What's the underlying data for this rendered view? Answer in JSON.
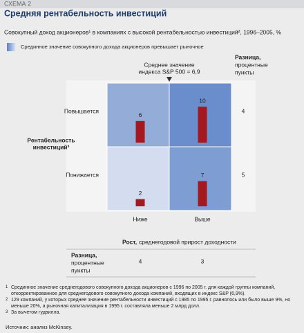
{
  "header": {
    "label": "СХЕМА 2",
    "title": "Средняя рентабельность инвестиций"
  },
  "chart_data": {
    "type": "matrix-bar",
    "subtitle": "Совокупный доход акционеров¹ в компаниях с высокой рентабельностью инвестиций², 1996–2005, %",
    "legend": "Срединное значение совокупного дохода акционеров превышает рыночное",
    "annotation": [
      "Среднее значение",
      "индекса S&P 500 = 6,9"
    ],
    "row_axis_label": [
      "Рентабельность",
      "инвестиций³"
    ],
    "column_axis_label": {
      "bold": "Рост,",
      "text": "среднегодовой прирост доходности"
    },
    "difference_label": {
      "bold": "Разница,",
      "lines": [
        "процентные",
        "пункты"
      ]
    },
    "rows": [
      "Повышается",
      "Понижается"
    ],
    "columns": [
      "Ниже",
      "Выше"
    ],
    "values": [
      [
        6,
        10
      ],
      [
        2,
        7
      ]
    ],
    "row_differences": [
      4,
      5
    ],
    "column_differences": [
      4,
      3
    ],
    "bar_color": "#a3191f",
    "cell_colors": [
      [
        "#94acd8",
        "#6a8dcb"
      ],
      [
        "#d4ddf0",
        "#7e9dd3"
      ]
    ]
  },
  "footnotes": [
    {
      "number": "1",
      "text": "Срединное значение среднегодового совокупного дохода акционеров с 1996 по 2005 г. для каждой группы компаний, откорректированное для среднегодового совокупного дохода компаний, входящих в индекс S&P (6,9%)."
    },
    {
      "number": "2",
      "text": "129 компаний, у которых среднее значение рентабельности инвестиций с 1985 по 1995 г. равнялось или было выше 9%, но меньше 20%, а рыночная капитализация в 1995 г. составляла меньше 2 млрд долл."
    },
    {
      "number": "3",
      "text": "За вычетом гудвилла."
    }
  ],
  "source": "Источник: анализ McKinsey."
}
